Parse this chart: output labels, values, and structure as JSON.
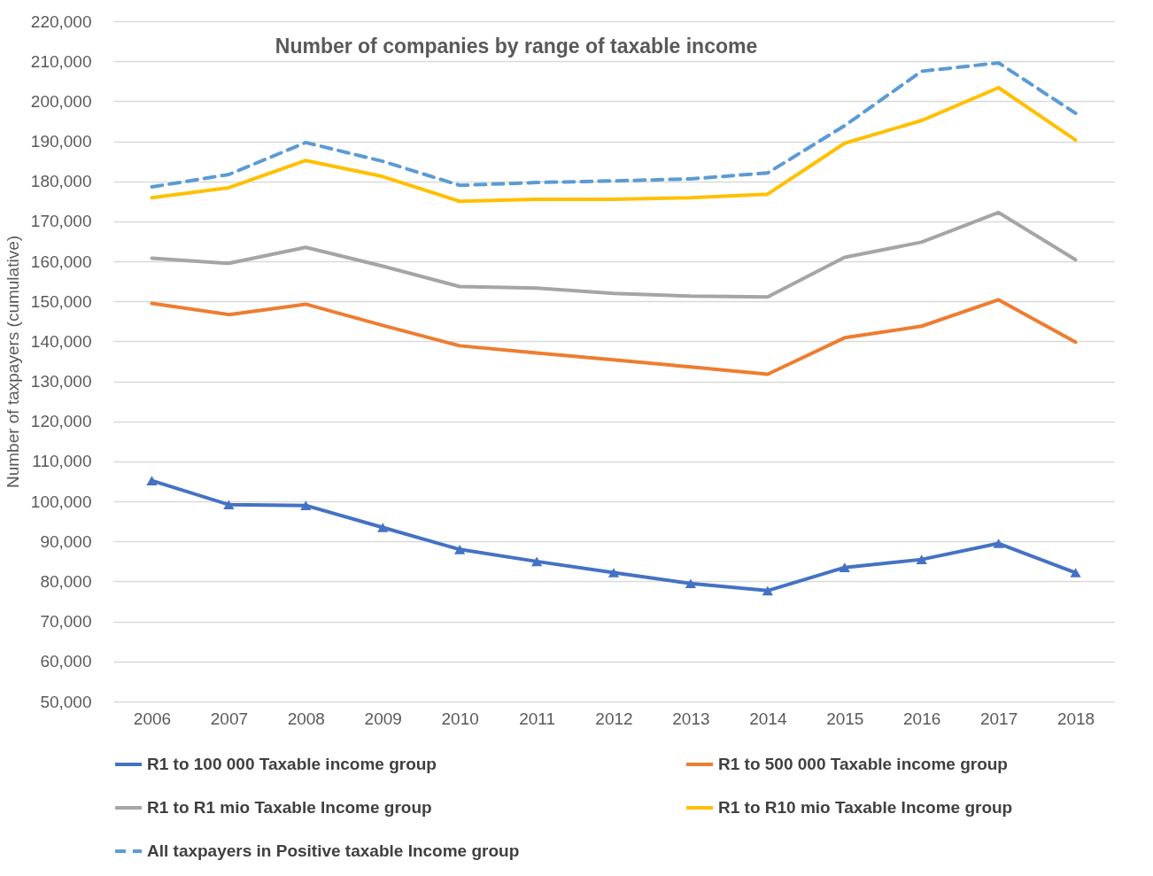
{
  "chart_data": {
    "type": "line",
    "title": "Number of companies by range of taxable income",
    "ylabel": "Number of taxpayers (cumulative)",
    "categories": [
      "2006",
      "2007",
      "2008",
      "2009",
      "2010",
      "2011",
      "2012",
      "2013",
      "2014",
      "2015",
      "2016",
      "2017",
      "2018"
    ],
    "ylim": [
      50000,
      220000
    ],
    "yticks": [
      {
        "value": 50000,
        "label": "50,000"
      },
      {
        "value": 60000,
        "label": "60,000"
      },
      {
        "value": 70000,
        "label": "70,000"
      },
      {
        "value": 80000,
        "label": "80,000"
      },
      {
        "value": 90000,
        "label": "90,000"
      },
      {
        "value": 100000,
        "label": "100,000"
      },
      {
        "value": 110000,
        "label": "110,000"
      },
      {
        "value": 120000,
        "label": "120,000"
      },
      {
        "value": 130000,
        "label": "130,000"
      },
      {
        "value": 140000,
        "label": "140,000"
      },
      {
        "value": 150000,
        "label": "150,000"
      },
      {
        "value": 160000,
        "label": "160,000"
      },
      {
        "value": 170000,
        "label": "170,000"
      },
      {
        "value": 180000,
        "label": "180,000"
      },
      {
        "value": 190000,
        "label": "190,000"
      },
      {
        "value": 200000,
        "label": "200,000"
      },
      {
        "value": 210000,
        "label": "210,000"
      },
      {
        "value": 220000,
        "label": "220,000"
      }
    ],
    "grid": "y",
    "legend": "bottom",
    "series": [
      {
        "name": "R1 to 100 000 Taxable income group",
        "color": "#4472c4",
        "marker": "triangle",
        "line_style": "solid",
        "values": [
          105200,
          99200,
          99000,
          93500,
          88000,
          85000,
          82200,
          79500,
          77700,
          83500,
          85500,
          89500,
          82200
        ]
      },
      {
        "name": "R1 to 500 000 Taxable income group",
        "color": "#ed7d31",
        "marker": "none",
        "line_style": "solid",
        "values": [
          149500,
          146700,
          149300,
          144000,
          138900,
          137100,
          135400,
          133600,
          131800,
          140900,
          143800,
          150400,
          139800
        ]
      },
      {
        "name": "R1 to R1 mio Taxable Income group",
        "color": "#a5a5a5",
        "marker": "none",
        "line_style": "solid",
        "values": [
          160800,
          159500,
          163500,
          158800,
          153700,
          153300,
          152000,
          151300,
          151100,
          161000,
          164800,
          172200,
          160400
        ]
      },
      {
        "name": "R1 to R10 mio Taxable Income group",
        "color": "#ffc000",
        "marker": "none",
        "line_style": "solid",
        "values": [
          175900,
          178400,
          185200,
          181200,
          175000,
          175500,
          175500,
          175900,
          176800,
          189500,
          195200,
          203400,
          190300
        ]
      },
      {
        "name": "All taxpayers in Positive taxable Income group",
        "color": "#5b9bd5",
        "marker": "none",
        "line_style": "dashed",
        "values": [
          178600,
          181700,
          189700,
          185000,
          179000,
          179700,
          180100,
          180600,
          182100,
          193900,
          207500,
          209600,
          197000
        ]
      }
    ]
  }
}
